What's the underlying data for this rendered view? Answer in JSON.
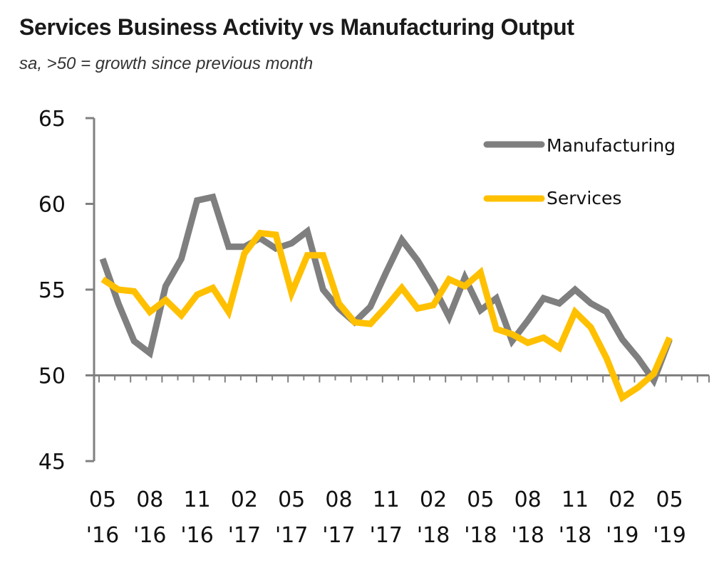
{
  "chart_data": {
    "type": "line",
    "title": "Services Business Activity vs Manufacturing Output",
    "subtitle": "sa, >50 = growth since previous month",
    "xlabel": "",
    "ylabel": "",
    "ylim": [
      45,
      65
    ],
    "yticks": [
      45,
      50,
      55,
      60,
      65
    ],
    "baseline": 50,
    "x": [
      "May '16",
      "Jun '16",
      "Jul '16",
      "Aug '16",
      "Sep '16",
      "Oct '16",
      "Nov '16",
      "Dec '16",
      "Jan '17",
      "Feb '17",
      "Mar '17",
      "Apr '17",
      "May '17",
      "Jun '17",
      "Jul '17",
      "Aug '17",
      "Sep '17",
      "Oct '17",
      "Nov '17",
      "Dec '17",
      "Jan '18",
      "Feb '18",
      "Mar '18",
      "Apr '18",
      "May '18",
      "Jun '18",
      "Jul '18",
      "Aug '18",
      "Sep '18",
      "Oct '18",
      "Nov '18",
      "Dec '18",
      "Jan '19",
      "Feb '19",
      "Mar '19",
      "Apr '19",
      "May '19"
    ],
    "xtick_labels": [
      {
        "index": 0,
        "month": "05",
        "year": "'16"
      },
      {
        "index": 3,
        "month": "08",
        "year": "'16"
      },
      {
        "index": 6,
        "month": "11",
        "year": "'16"
      },
      {
        "index": 9,
        "month": "02",
        "year": "'17"
      },
      {
        "index": 12,
        "month": "05",
        "year": "'17"
      },
      {
        "index": 15,
        "month": "08",
        "year": "'17"
      },
      {
        "index": 18,
        "month": "11",
        "year": "'17"
      },
      {
        "index": 21,
        "month": "02",
        "year": "'18"
      },
      {
        "index": 24,
        "month": "05",
        "year": "'18"
      },
      {
        "index": 27,
        "month": "08",
        "year": "'18"
      },
      {
        "index": 30,
        "month": "11",
        "year": "'18"
      },
      {
        "index": 33,
        "month": "02",
        "year": "'19"
      },
      {
        "index": 36,
        "month": "05",
        "year": "'19"
      }
    ],
    "series": [
      {
        "name": "Manufacturing",
        "color": "#7f7f7f",
        "values": [
          56.8,
          54.2,
          52.0,
          51.3,
          55.2,
          56.8,
          60.2,
          60.4,
          57.5,
          57.5,
          58.0,
          57.4,
          57.7,
          58.4,
          55.0,
          53.9,
          53.1,
          54.0,
          56.0,
          57.9,
          56.7,
          55.2,
          53.4,
          55.7,
          53.8,
          54.5,
          52.0,
          53.2,
          54.5,
          54.2,
          55.0,
          54.2,
          53.7,
          52.1,
          51.0,
          49.7,
          52.1
        ]
      },
      {
        "name": "Services",
        "color": "#ffc000",
        "values": [
          55.6,
          55.0,
          54.9,
          53.7,
          54.4,
          53.5,
          54.7,
          55.1,
          53.7,
          57.1,
          58.3,
          58.2,
          54.8,
          57.0,
          57.0,
          54.2,
          53.1,
          53.0,
          54.0,
          55.1,
          53.9,
          54.1,
          55.6,
          55.2,
          56.0,
          52.7,
          52.4,
          51.9,
          52.2,
          51.6,
          53.7,
          52.8,
          51.0,
          48.7,
          49.3,
          50.1,
          52.2
        ]
      }
    ],
    "legend": {
      "placement": "top-right",
      "entries": [
        "Manufacturing",
        "Services"
      ]
    },
    "grid": false,
    "axis_color": "#808080"
  }
}
